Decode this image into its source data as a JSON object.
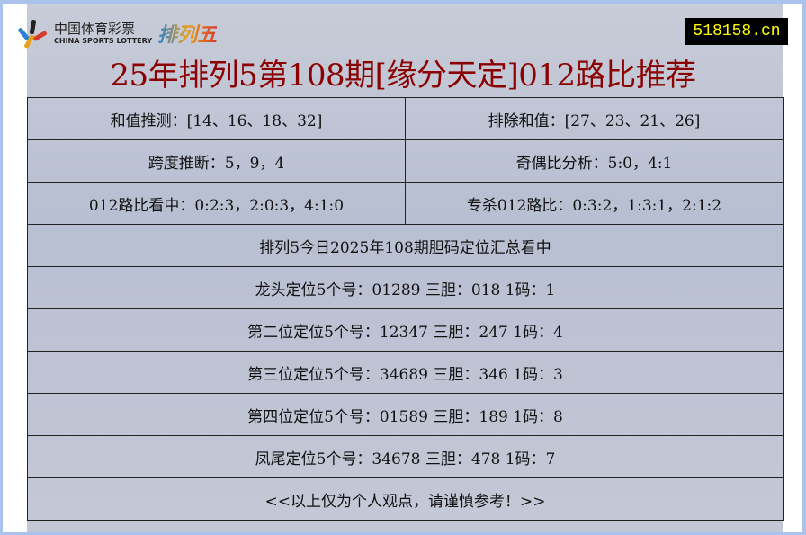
{
  "logo": {
    "cn": "中国体育彩票",
    "en": "CHINA SPORTS LOTTERY",
    "product": "排列五"
  },
  "site_badge": "518158.cn",
  "title": "25年排列5第108期[缘分天定]012路比推荐",
  "rows": [
    [
      "和值推测：[14、16、18、32]",
      "排除和值：[27、23、21、26]"
    ],
    [
      "跨度推断：5，9，4",
      "奇偶比分析：5:0，4:1"
    ],
    [
      "012路比看中：0:2:3，2:0:3，4:1:0",
      "专杀012路比：0:3:2，1:3:1，2:1:2"
    ]
  ],
  "summary_title": "排列5今日2025年108期胆码定位汇总看中",
  "positions": [
    "龙头定位5个号：01289 三胆：018 1码：1",
    "第二位定位5个号：12347 三胆：247 1码：4",
    "第三位定位5个号：34689 三胆：346 1码：3",
    "第四位定位5个号：01589 三胆：189 1码：8",
    "凤尾定位5个号：34678 三胆：478 1码：7"
  ],
  "footer": "<<以上仅为个人观点，请谨慎参考！>>",
  "colors": {
    "title": "#8b0000",
    "badge_bg": "#000000",
    "badge_text": "#ffff00",
    "border": "#a9c3ec"
  }
}
